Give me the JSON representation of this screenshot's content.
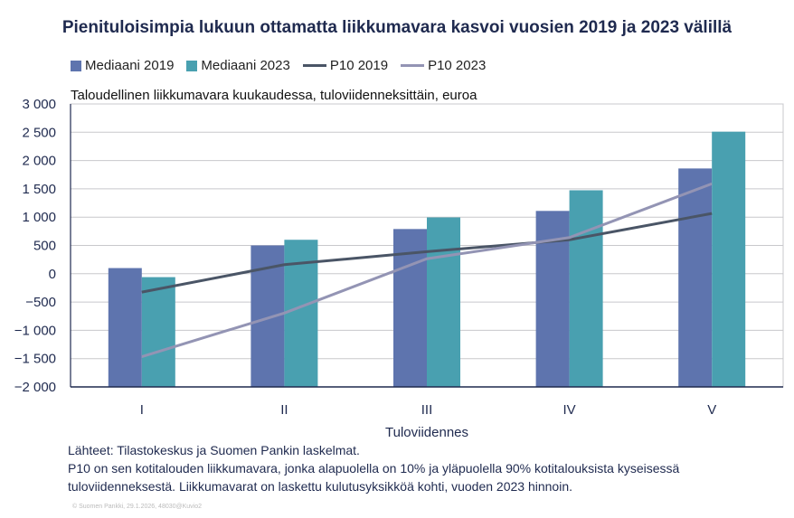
{
  "chart_data": {
    "type": "bar",
    "title": "Pienituloisimpia lukuun ottamatta liikkumavara kasvoi vuosien 2019 ja 2023 välillä",
    "subtitle": "Taloudellinen  liikkumavara kuukaudessa, tuloviidenneksittäin,  euroa",
    "xlabel": "Tuloviidennes",
    "ylabel": "",
    "categories": [
      "I",
      "II",
      "III",
      "IV",
      "V"
    ],
    "ylim": [
      -2000,
      3000
    ],
    "yticks": [
      3000,
      2500,
      2000,
      1500,
      1000,
      500,
      0,
      -500,
      -1000,
      -1500,
      -2000
    ],
    "ytick_labels": [
      "3 000",
      "2 500",
      "2 000",
      "1 500",
      "1 000",
      "500",
      "0",
      "−500",
      "−1 000",
      "−1 500",
      "−2 000"
    ],
    "grid": true,
    "legend": "top",
    "series": [
      {
        "name": "Mediaani 2019",
        "kind": "bar",
        "color": "#5e74ae",
        "values": [
          100,
          500,
          790,
          1110,
          1860
        ]
      },
      {
        "name": "Mediaani 2023",
        "kind": "bar",
        "color": "#49a0b0",
        "values": [
          -60,
          600,
          995,
          1475,
          2510
        ]
      },
      {
        "name": "P10 2019",
        "kind": "line",
        "color": "#4a5566",
        "values": [
          -325,
          160,
          390,
          600,
          1065
        ]
      },
      {
        "name": "P10 2023",
        "kind": "line",
        "color": "#9394b4",
        "values": [
          -1465,
          -695,
          265,
          640,
          1590
        ]
      }
    ]
  },
  "notes": [
    "Lähteet: Tilastokeskus ja Suomen Pankin laskelmat.",
    "P10 on sen kotitalouden liikkumavara, jonka alapuolella on 10% ja yläpuolella 90% kotitalouksista kyseisessä",
    "tuloviidenneksestä. Liikkumavarat on laskettu kulutusyksikköä kohti, vuoden 2023 hinnoin."
  ],
  "copyright": "© Suomen Pankki, 29.1.2026, 48030@Kuvio2"
}
